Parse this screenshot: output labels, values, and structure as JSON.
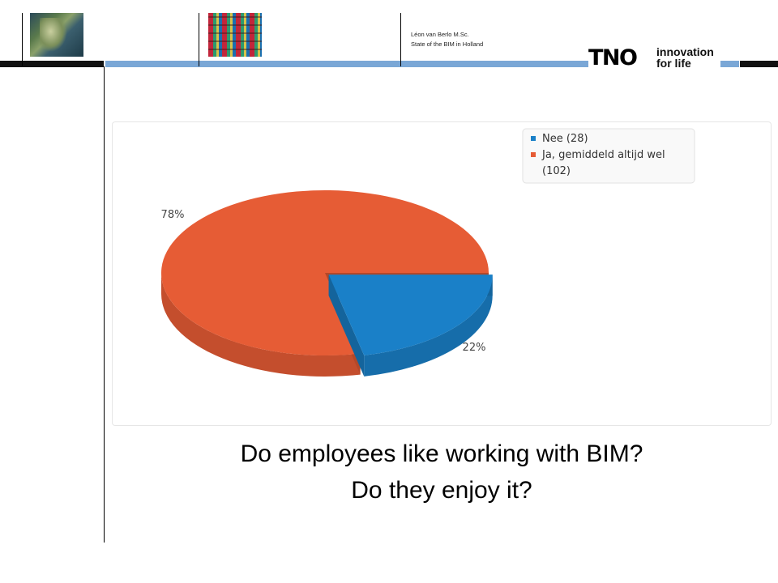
{
  "header": {
    "author": "Léon van Berlo M.Sc.",
    "subtitle": "State of the BIM in Holland",
    "logo_mark": "TNO",
    "logo_tagline_1": "innovation",
    "logo_tagline_2": "for life",
    "thumbnails": [
      "satellite-map-image",
      "industrial-pipes-image"
    ]
  },
  "chart_data": {
    "type": "pie",
    "categories": [
      "Nee (28)",
      "Ja, gemiddeld altijd wel (102)"
    ],
    "values": [
      28,
      102
    ],
    "percent_labels": [
      "22%",
      "78%"
    ],
    "colors": [
      "#1a80c8",
      "#e65c35"
    ],
    "legend_position": "top-right",
    "exploded_slice": "Nee (28)"
  },
  "caption": {
    "line1": "Do employees like working with BIM?",
    "line2": "Do they enjoy it?"
  }
}
